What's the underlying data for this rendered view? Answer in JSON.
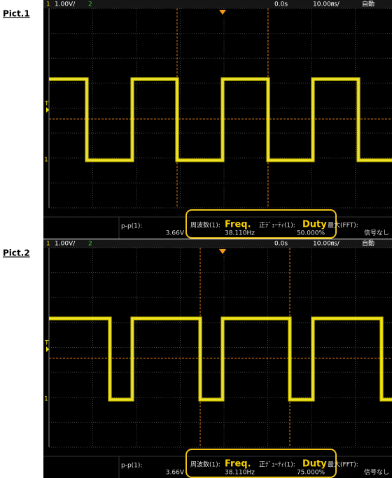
{
  "panels": [
    {
      "label": "Pict.1",
      "status_bar": {
        "ch1": "1",
        "ch1_scale": "1.00V/",
        "ch2": "2",
        "delay": "0.0s",
        "timebase": "10.00㎳/",
        "mode": "自動"
      },
      "markers": {
        "trigger": "T",
        "ch1": "1"
      },
      "measurements": {
        "pp_label": "p-p(1):",
        "pp_value": "3.66V",
        "freq_label": "周波数(1):",
        "freq_callout": "Freq.",
        "freq_value": "38.110Hz",
        "duty_label": "正ﾃﾞｭｰﾃｨ(1):",
        "duty_callout": "Duty",
        "duty_value": "50.000%",
        "fft_label": "最大(FFT):",
        "fft_value": "信号なし"
      }
    },
    {
      "label": "Pict.2",
      "status_bar": {
        "ch1": "1",
        "ch1_scale": "1.00V/",
        "ch2": "2",
        "delay": "0.0s",
        "timebase": "10.00㎳/",
        "mode": "自動"
      },
      "markers": {
        "trigger": "T",
        "ch1": "1"
      },
      "measurements": {
        "pp_label": "p-p(1):",
        "pp_value": "3.66V",
        "freq_label": "周波数(1):",
        "freq_callout": "Freq.",
        "freq_value": "38.110Hz",
        "duty_label": "正ﾃﾞｭｰﾃｨ(1):",
        "duty_callout": "Duty",
        "duty_value": "75.000%",
        "fft_label": "最大(FFT):",
        "fft_value": "信号なし"
      }
    }
  ]
}
